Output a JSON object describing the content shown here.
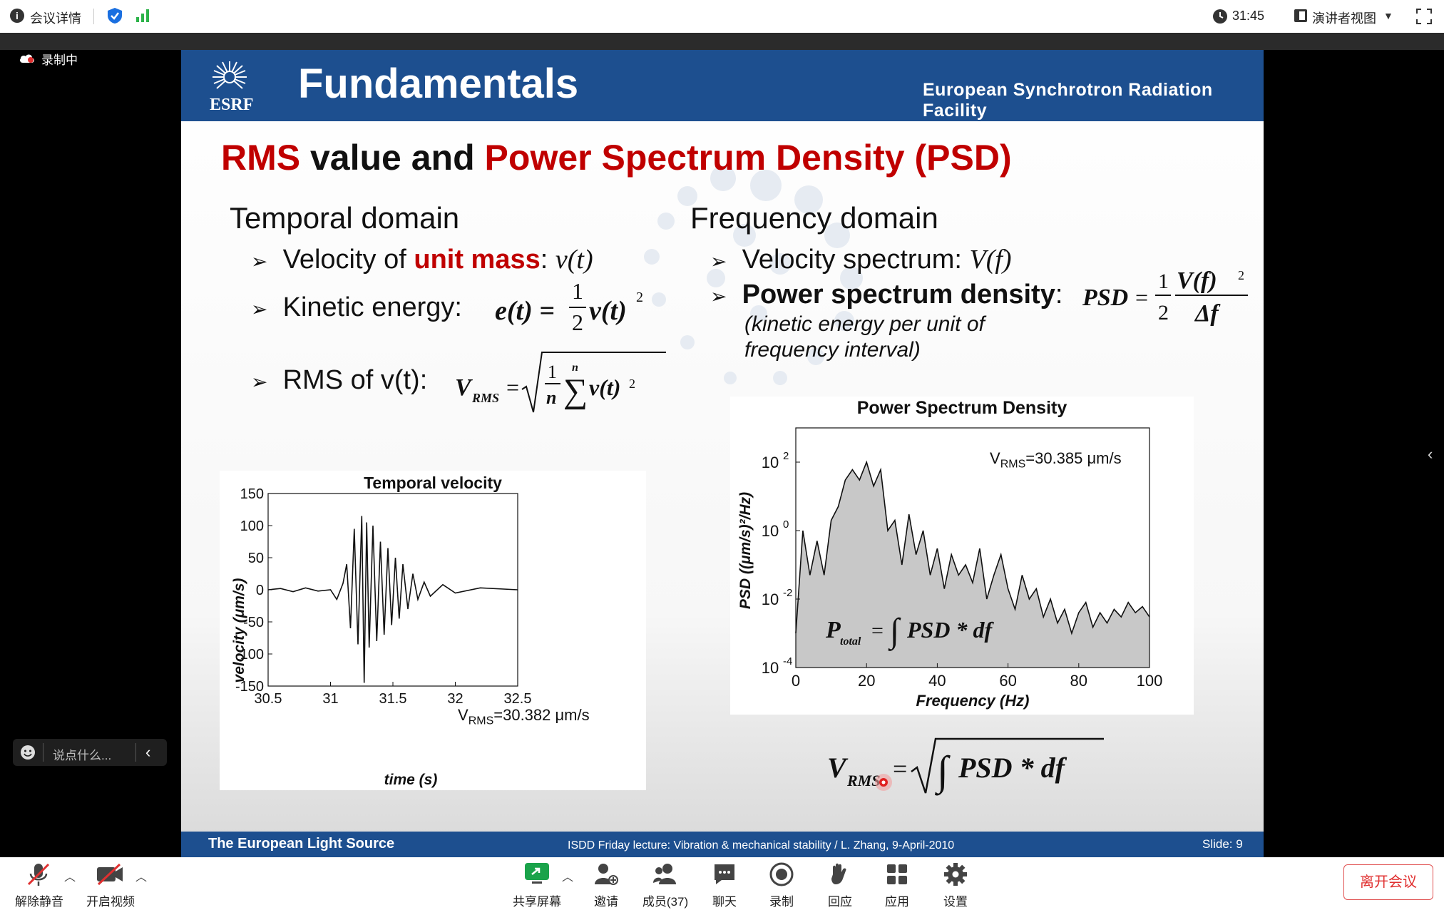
{
  "topbar": {
    "meeting_info": "会议详情",
    "timer": "31:45",
    "view_mode": "演讲者视图"
  },
  "recording": {
    "label": "录制中"
  },
  "chat": {
    "placeholder": "说点什么..."
  },
  "slide": {
    "header_title": "Fundamentals",
    "logo_text": "ESRF",
    "facility": "European Synchrotron Radiation Facility",
    "heading_part1": "RMS",
    "heading_part2": " value and ",
    "heading_part3": "Power Spectrum Density (PSD)",
    "temporal": {
      "title": "Temporal domain",
      "b1_pre": "Velocity of ",
      "b1_red": "unit mass",
      "b1_post": ": ",
      "b1_formula": "v(t)",
      "b2": "Kinetic energy:",
      "b3": "RMS of v(t):"
    },
    "frequency": {
      "title": "Frequency domain",
      "b1": "Velocity spectrum: ",
      "b1_formula": "V(f)",
      "b2": "Power spectrum density",
      "b2_colon": ":",
      "b2_note1": "(kinetic energy per unit of",
      "b2_note2": "frequency interval)"
    },
    "footer_left": "The European Light Source",
    "footer_center": "ISDD Friday lecture: Vibration & mechanical stability / L. Zhang,  9-April-2010",
    "footer_right": "Slide: 9"
  },
  "chart_data": [
    {
      "type": "line",
      "title": "Temporal velocity",
      "xlabel": "time  (s)",
      "ylabel": "velocity (μm/s)",
      "xlim": [
        30.5,
        32.5
      ],
      "ylim": [
        -150,
        150
      ],
      "xticks": [
        "30.5",
        "31",
        "31.5",
        "32",
        "32.5"
      ],
      "yticks": [
        "150",
        "100",
        "50",
        "0",
        "-50",
        "-100",
        "-150"
      ],
      "annotation": "V_RMS=30.382 μm/s",
      "annotation_main": "V",
      "annotation_sub": "RMS",
      "annotation_rest": "=30.382 μm/s",
      "series": [
        {
          "x": [
            30.5,
            30.6,
            30.7,
            30.8,
            30.9,
            31.0,
            31.05,
            31.1,
            31.13,
            31.16,
            31.19,
            31.22,
            31.25,
            31.27,
            31.29,
            31.31,
            31.34,
            31.37,
            31.4,
            31.43,
            31.46,
            31.49,
            31.52,
            31.55,
            31.58,
            31.62,
            31.66,
            31.7,
            31.75,
            31.8,
            31.9,
            32.0,
            32.2,
            32.5
          ],
          "y": [
            0,
            2,
            -3,
            3,
            -2,
            0,
            -15,
            10,
            40,
            -60,
            95,
            -85,
            115,
            -145,
            105,
            -90,
            100,
            -80,
            75,
            -70,
            65,
            -55,
            50,
            -45,
            40,
            -30,
            25,
            -15,
            12,
            -10,
            8,
            -5,
            3,
            0
          ]
        }
      ]
    },
    {
      "type": "area",
      "title": "Power Spectrum Density",
      "xlabel": "Frequency (Hz)",
      "ylabel": "PSD ((μm/s)²/Hz)",
      "xlim": [
        0,
        100
      ],
      "ylim": [
        0.0001,
        1000
      ],
      "yscale": "log",
      "xticks": [
        "0",
        "20",
        "40",
        "60",
        "80",
        "100"
      ],
      "yticks": [
        "10^2",
        "10^0",
        "10^-2",
        "10^-4"
      ],
      "annotation": "V_RMS=30.385 μm/s",
      "annotation_main": "V",
      "annotation_sub": "RMS",
      "annotation_rest": "=30.385 μm/s",
      "series": [
        {
          "x": [
            0,
            2,
            4,
            6,
            8,
            10,
            12,
            14,
            16,
            18,
            20,
            22,
            24,
            26,
            28,
            30,
            32,
            34,
            36,
            38,
            40,
            42,
            44,
            46,
            48,
            50,
            52,
            54,
            56,
            58,
            60,
            62,
            64,
            66,
            68,
            70,
            72,
            74,
            76,
            78,
            80,
            82,
            84,
            86,
            88,
            90,
            92,
            94,
            96,
            98,
            100
          ],
          "y": [
            0.001,
            1,
            0.05,
            0.5,
            0.05,
            2,
            5,
            30,
            60,
            30,
            100,
            20,
            60,
            1,
            2,
            0.1,
            3,
            0.2,
            1,
            0.05,
            0.3,
            0.02,
            0.2,
            0.05,
            0.1,
            0.03,
            0.3,
            0.01,
            0.05,
            0.2,
            0.02,
            0.005,
            0.05,
            0.01,
            0.02,
            0.003,
            0.01,
            0.002,
            0.005,
            0.001,
            0.004,
            0.008,
            0.0015,
            0.004,
            0.002,
            0.005,
            0.003,
            0.008,
            0.004,
            0.006,
            0.003
          ]
        }
      ]
    }
  ],
  "bottombar": {
    "mute": "解除静音",
    "video": "开启视频",
    "share": "共享屏幕",
    "invite": "邀请",
    "members": "成员(37)",
    "chat": "聊天",
    "record": "录制",
    "reactions": "回应",
    "apps": "应用",
    "settings": "设置",
    "leave": "离开会议"
  }
}
